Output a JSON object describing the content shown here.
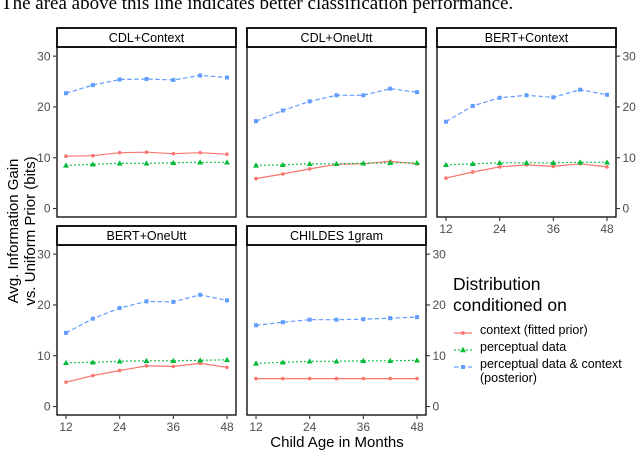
{
  "caption": "The area above this line indicates better classification performance.",
  "legend": {
    "title": "Distribution\n conditioned on"
  },
  "chart_data": {
    "type": "line",
    "title": "",
    "xlabel": "Child Age in Months",
    "ylabel": "Avg. Information Gain\nvs. Uniform Prior (bits)",
    "x": [
      12,
      18,
      24,
      30,
      36,
      42,
      48
    ],
    "x_ticks": [
      12,
      24,
      36,
      48
    ],
    "y_ticks": [
      0,
      10,
      20,
      30
    ],
    "ylim": [
      0,
      30
    ],
    "grid": false,
    "legend_position": "right",
    "series_meta": [
      {
        "id": "context",
        "label": "context (fitted prior)",
        "color": "#F8766D",
        "dash": "solid",
        "marker": "circle"
      },
      {
        "id": "perceptual",
        "label": "perceptual data",
        "color": "#00BA38",
        "dash": "dotted",
        "marker": "triangle"
      },
      {
        "id": "posterior",
        "label": "perceptual data & context\n(posterior)",
        "color": "#619CFF",
        "dash": "dashed",
        "marker": "square"
      }
    ],
    "facets": [
      {
        "title": "CDL+Context",
        "row": 0,
        "col": 0,
        "series": {
          "context": [
            10.3,
            10.4,
            11.0,
            11.1,
            10.8,
            11.0,
            10.7
          ],
          "perceptual": [
            8.5,
            8.7,
            8.9,
            8.9,
            9.0,
            9.1,
            9.1
          ],
          "posterior": [
            22.7,
            24.3,
            25.4,
            25.5,
            25.3,
            26.2,
            25.8
          ]
        }
      },
      {
        "title": "CDL+OneUtt",
        "row": 0,
        "col": 1,
        "series": {
          "context": [
            5.9,
            6.8,
            7.8,
            8.7,
            8.8,
            9.3,
            8.8
          ],
          "perceptual": [
            8.5,
            8.6,
            8.8,
            8.8,
            8.9,
            9.0,
            9.0
          ],
          "posterior": [
            17.2,
            19.3,
            21.1,
            22.3,
            22.3,
            23.6,
            22.9
          ]
        }
      },
      {
        "title": "BERT+Context",
        "row": 0,
        "col": 2,
        "series": {
          "context": [
            6.0,
            7.2,
            8.2,
            8.6,
            8.3,
            8.8,
            8.2
          ],
          "perceptual": [
            8.6,
            8.8,
            9.0,
            9.0,
            9.0,
            9.1,
            9.1
          ],
          "posterior": [
            17.1,
            20.2,
            21.8,
            22.3,
            21.9,
            23.4,
            22.4
          ]
        }
      },
      {
        "title": "BERT+OneUtt",
        "row": 1,
        "col": 0,
        "series": {
          "context": [
            4.8,
            6.1,
            7.1,
            8.0,
            7.9,
            8.5,
            7.7
          ],
          "perceptual": [
            8.6,
            8.7,
            8.9,
            9.0,
            9.0,
            9.1,
            9.2
          ],
          "posterior": [
            14.5,
            17.3,
            19.4,
            20.7,
            20.6,
            22.0,
            20.9
          ]
        }
      },
      {
        "title": "CHILDES 1gram",
        "row": 1,
        "col": 1,
        "series": {
          "context": [
            5.5,
            5.5,
            5.5,
            5.5,
            5.5,
            5.5,
            5.5
          ],
          "perceptual": [
            8.5,
            8.7,
            8.9,
            8.9,
            9.0,
            9.0,
            9.1
          ],
          "posterior": [
            16.0,
            16.6,
            17.1,
            17.1,
            17.2,
            17.4,
            17.6
          ]
        }
      }
    ]
  }
}
